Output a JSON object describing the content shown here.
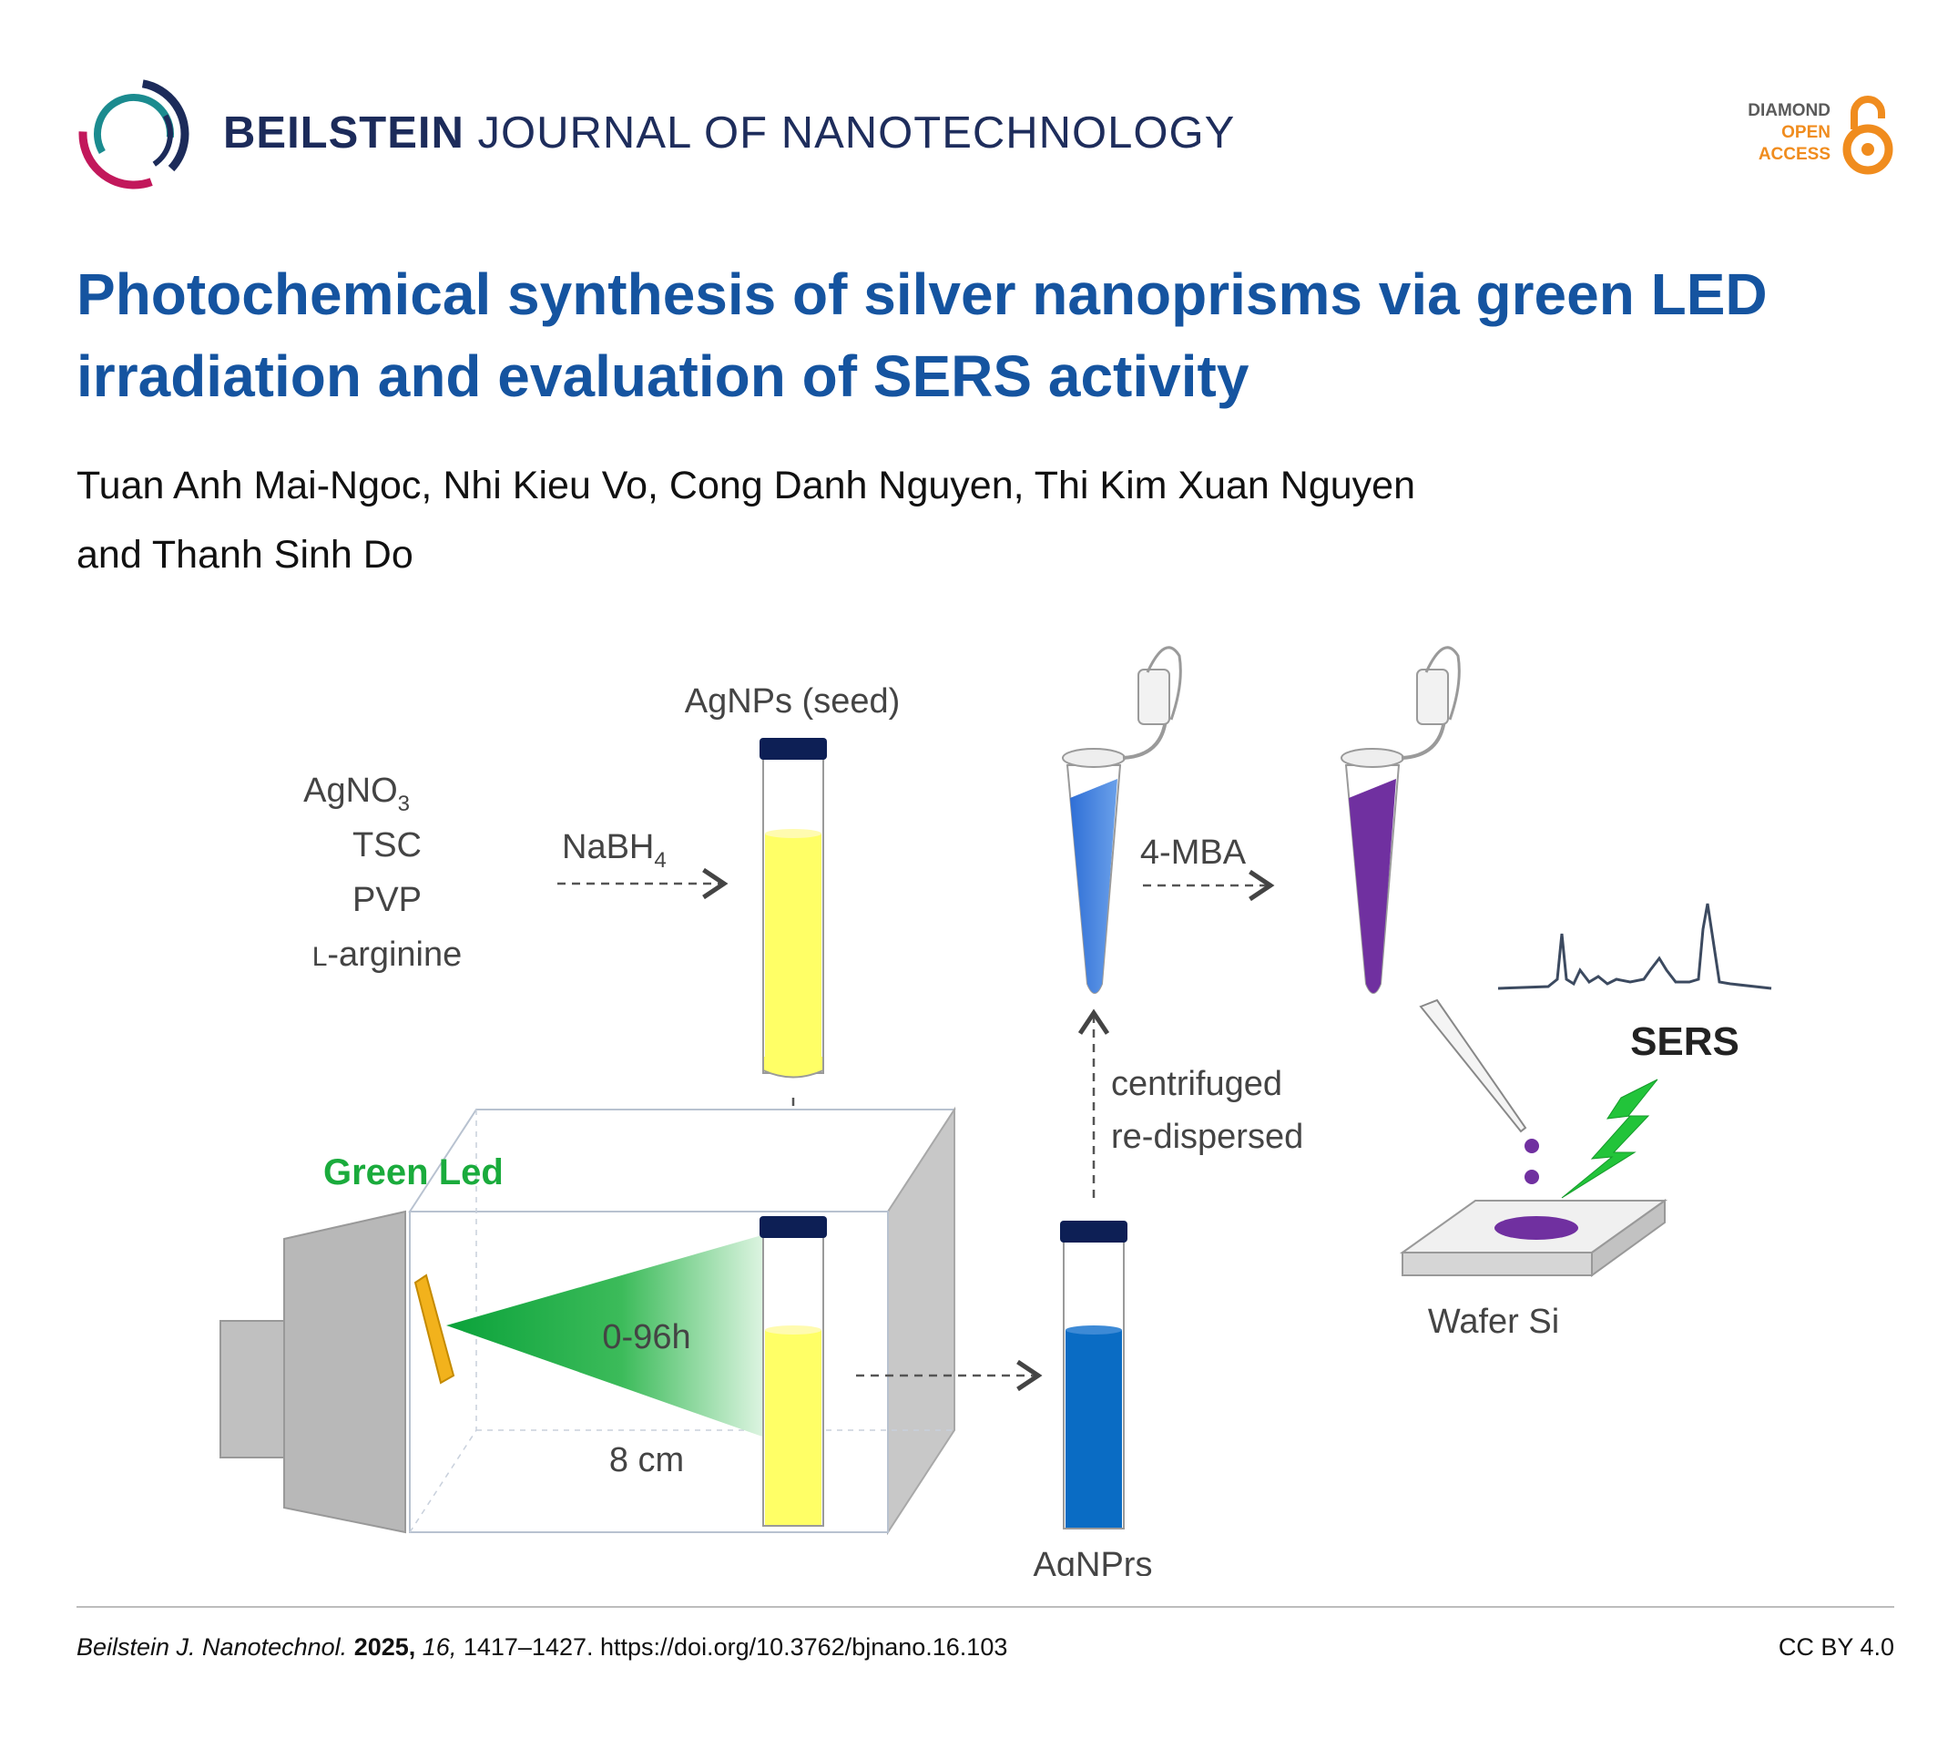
{
  "header": {
    "journal_bold": "BEILSTEIN",
    "journal_rest": "JOURNAL OF NANOTECHNOLOGY",
    "oa_line1": "DIAMOND",
    "oa_line2": "OPEN",
    "oa_line3": "ACCESS"
  },
  "article": {
    "title": "Photochemical synthesis of silver nanoprisms via green LED irradiation and evaluation of SERS activity",
    "authors_line1": "Tuan Anh Mai-Ngoc, Nhi Kieu Vo, Cong Danh Nguyen, Thi Kim Xuan Nguyen",
    "authors_line2": "and Thanh Sinh Do"
  },
  "graphic": {
    "seed_label": "AgNPs (seed)",
    "reagent_1": "AgNO",
    "reagent_1_sub": "3",
    "reagent_2": "TSC",
    "reagent_3": "PVP",
    "reagent_4_prefix": "L",
    "reagent_4": "-arginine",
    "reducer": "NaBH",
    "reducer_sub": "4",
    "ligand": "4-MBA",
    "centrifuge_1": "centrifuged",
    "centrifuge_2": "re-dispersed",
    "led_label": "Green Led",
    "time_label": "0-96h",
    "distance_label": "8 cm",
    "product_label": "AgNPrs",
    "sers_label": "SERS",
    "wafer_label": "Wafer Si",
    "colors": {
      "seed_yellow": "#ffff66",
      "tube_cap": "#0d1f55",
      "blue": "#0a6cc4",
      "purple": "#7030a0",
      "green_led": "#1aab3c",
      "bolt_green": "#22c43a"
    }
  },
  "footer": {
    "journal_abbrev": "Beilstein J. Nanotechnol.",
    "year": "2025,",
    "volume": "16,",
    "pages_doi": "1417–1427. https://doi.org/10.3762/bjnano.16.103",
    "license": "CC BY 4.0"
  }
}
